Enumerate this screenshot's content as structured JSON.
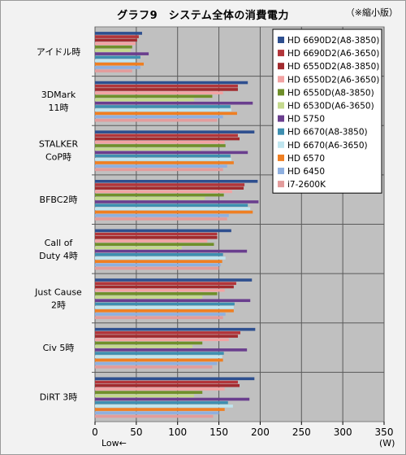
{
  "chart_data": {
    "type": "bar",
    "orientation": "horizontal",
    "title": "グラフ9　システム全体の消費電力",
    "note": "（※縮小版）",
    "x_caption_left": "Low←",
    "unit": "(W)",
    "xlim": [
      0,
      350
    ],
    "xticks": [
      0,
      50,
      100,
      150,
      200,
      250,
      300,
      350
    ],
    "grid": true,
    "legend_position": "top-right",
    "categories": [
      "アイドル時",
      "3DMark 11時",
      "STALKER CoP時",
      "BFBC2時",
      "Call of Duty 4時",
      "Just Cause 2時",
      "Civ 5時",
      "DiRT 3時"
    ],
    "series": [
      {
        "name": "HD 6690D2(A8-3850)",
        "color": "#2e4f8f",
        "values": [
          57,
          185,
          193,
          197,
          165,
          190,
          194,
          193
        ]
      },
      {
        "name": "HD 6690D2(A6-3650)",
        "color": "#b2353a",
        "values": [
          53,
          173,
          173,
          181,
          148,
          171,
          176,
          173
        ]
      },
      {
        "name": "HD 6550D2(A8-3850)",
        "color": "#a12a2e",
        "values": [
          51,
          173,
          175,
          180,
          148,
          168,
          173,
          175
        ]
      },
      {
        "name": "HD 6550D2(A6-3650)",
        "color": "#f2a3a3",
        "values": [
          49,
          155,
          157,
          166,
          136,
          157,
          162,
          157
        ]
      },
      {
        "name": "HD 6550D(A8-3850)",
        "color": "#6f8f2a",
        "values": [
          45,
          142,
          158,
          156,
          144,
          148,
          130,
          130
        ]
      },
      {
        "name": "HD 6530D(A6-3650)",
        "color": "#c4d98d",
        "values": [
          43,
          120,
          128,
          133,
          105,
          130,
          118,
          120
        ]
      },
      {
        "name": "HD 5750",
        "color": "#6a3e8e",
        "values": [
          65,
          191,
          185,
          198,
          184,
          188,
          184,
          187
        ]
      },
      {
        "name": "HD 6670(A8-3850)",
        "color": "#3e8fb0",
        "values": [
          55,
          164,
          164,
          185,
          155,
          169,
          156,
          161
        ]
      },
      {
        "name": "HD 6670(A6-3650)",
        "color": "#bfe5ef",
        "values": [
          49,
          165,
          165,
          188,
          158,
          168,
          154,
          167
        ]
      },
      {
        "name": "HD 6570",
        "color": "#ef7f22",
        "values": [
          59,
          172,
          168,
          191,
          154,
          168,
          155,
          157
        ]
      },
      {
        "name": "HD 6450",
        "color": "#8fb0e0",
        "values": [
          55,
          155,
          160,
          162,
          152,
          158,
          148,
          150
        ]
      },
      {
        "name": "i7-2600K",
        "color": "#e39c9c",
        "values": [
          45,
          148,
          155,
          160,
          150,
          155,
          142,
          143
        ]
      }
    ]
  }
}
